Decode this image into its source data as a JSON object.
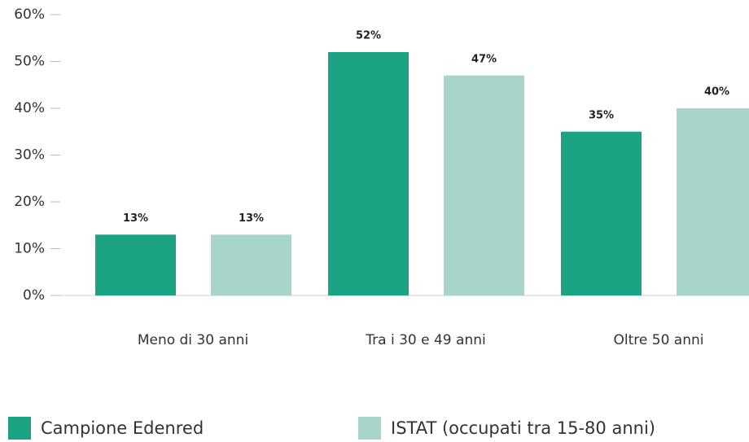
{
  "chart_data": {
    "type": "bar",
    "categories": [
      "Meno di 30 anni",
      "Tra i 30 e 49 anni",
      "Oltre 50 anni"
    ],
    "series": [
      {
        "name": "Campione Edenred",
        "color": "#1ba383",
        "values": [
          13,
          52,
          35
        ],
        "value_labels": [
          "13%",
          "52%",
          "35%"
        ]
      },
      {
        "name": "ISTAT (occupati tra 15-80 anni)",
        "color": "#a8d5ca",
        "values": [
          13,
          47,
          40
        ],
        "value_labels": [
          "13%",
          "47%",
          "40%"
        ]
      }
    ],
    "ylim": [
      0,
      60
    ],
    "yticks": [
      {
        "value": 0,
        "label": "0%"
      },
      {
        "value": 10,
        "label": "10%"
      },
      {
        "value": 20,
        "label": "20%"
      },
      {
        "value": 30,
        "label": "30%"
      },
      {
        "value": 40,
        "label": "40%"
      },
      {
        "value": 50,
        "label": "50%"
      },
      {
        "value": 60,
        "label": "60%"
      }
    ],
    "legend": "bottom"
  }
}
